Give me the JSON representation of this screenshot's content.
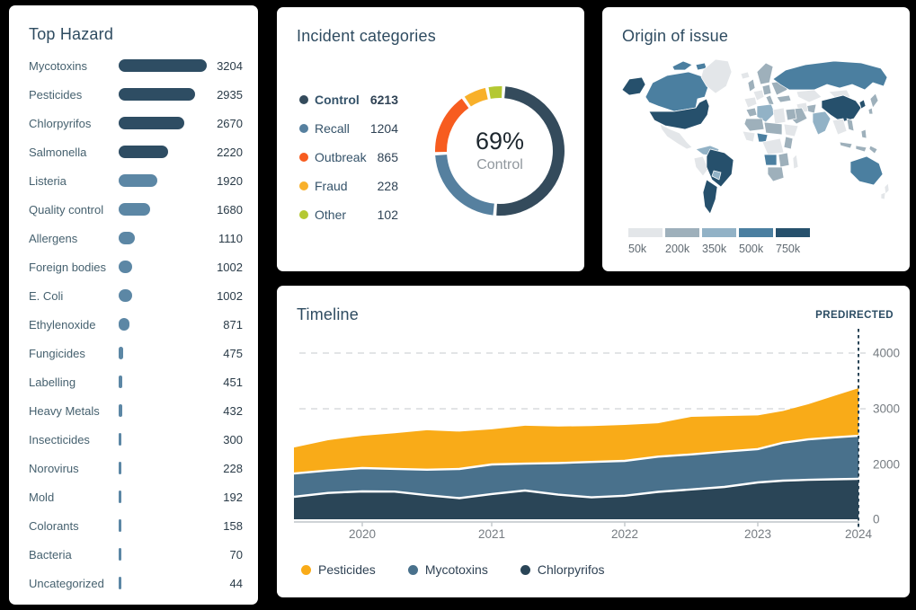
{
  "palette": {
    "page_bg": "#000000",
    "card_bg": "#FFFFFF",
    "title": "#2E4B60",
    "bar_dark": "#2E4D63",
    "bar_light": "#5C87A5",
    "axis_text": "#767C82",
    "grid": "#D8DBDD",
    "pred_line": "#2A4557"
  },
  "panels": {
    "top_hazard": {
      "title": "Top Hazard"
    },
    "incident_categories": {
      "title": "Incident categories",
      "center_value": "69%",
      "center_label": "Control"
    },
    "origin_of_issue": {
      "title": "Origin of issue"
    },
    "timeline": {
      "title": "Timeline",
      "annotation": "PREDIRECTED"
    }
  },
  "chart_data": [
    {
      "type": "bar",
      "title": "Top Hazard",
      "orientation": "horizontal",
      "categories": [
        "Mycotoxins",
        "Pesticides",
        "Chlorpyrifos",
        "Salmonella",
        "Listeria",
        "Quality control",
        "Allergens",
        "Foreign bodies",
        "E. Coli",
        "Ethylenoxide",
        "Fungicides",
        "Labelling",
        "Heavy Metals",
        "Insecticides",
        "Norovirus",
        "Mold",
        "Colorants",
        "Bacteria",
        "Uncategorized"
      ],
      "values": [
        3204,
        2935,
        2670,
        2220,
        1920,
        1680,
        1110,
        1002,
        1002,
        871,
        475,
        451,
        432,
        300,
        228,
        192,
        158,
        70,
        44
      ],
      "dark_count": 4
    },
    {
      "type": "pie",
      "subtype": "donut",
      "title": "Incident categories",
      "labels": [
        "Control",
        "Recall",
        "Outbreak",
        "Fraud",
        "Other"
      ],
      "values": [
        6213,
        1204,
        865,
        228,
        102
      ],
      "colors": [
        "#344B5C",
        "#56809F",
        "#F75C1F",
        "#F8B02A",
        "#B4C832"
      ],
      "center": {
        "value": "69%",
        "label": "Control"
      },
      "display_sweeps_deg": [
        178,
        80,
        55,
        20,
        12
      ],
      "start_angle_deg": 5,
      "gap_deg": 3,
      "legend_position": "left"
    },
    {
      "type": "heatmap",
      "subtype": "choropleth-world-map",
      "title": "Origin of issue",
      "scale_labels": [
        "50k",
        "200k",
        "350k",
        "500k",
        "750k"
      ],
      "scale_colors": [
        "#E3E6E9",
        "#9EB0BB",
        "#92B2C6",
        "#4B7FA0",
        "#26506C"
      ],
      "regions": [
        {
          "name": "alaska",
          "level": 5
        },
        {
          "name": "canada",
          "level": 4
        },
        {
          "name": "canada-islands",
          "level": 4
        },
        {
          "name": "greenland",
          "level": 1
        },
        {
          "name": "usa",
          "level": 5
        },
        {
          "name": "mexico",
          "level": 1
        },
        {
          "name": "colombia-venezuela",
          "level": 3
        },
        {
          "name": "peru",
          "level": 1
        },
        {
          "name": "brazil",
          "level": 5
        },
        {
          "name": "bolivia",
          "level": 3
        },
        {
          "name": "argentina-chile",
          "level": 5
        },
        {
          "name": "iceland",
          "level": 1
        },
        {
          "name": "scandinavia",
          "level": 2
        },
        {
          "name": "uk",
          "level": 2
        },
        {
          "name": "iberia",
          "level": 1
        },
        {
          "name": "france",
          "level": 1
        },
        {
          "name": "central-europe",
          "level": 2
        },
        {
          "name": "italy",
          "level": 2
        },
        {
          "name": "eastern-europe",
          "level": 2
        },
        {
          "name": "russia",
          "level": 4
        },
        {
          "name": "kazakhstan",
          "level": 1
        },
        {
          "name": "mongolia",
          "level": 1
        },
        {
          "name": "china",
          "level": 5
        },
        {
          "name": "korea",
          "level": 5
        },
        {
          "name": "japan",
          "level": 2
        },
        {
          "name": "india",
          "level": 3
        },
        {
          "name": "pakistan",
          "level": 2
        },
        {
          "name": "iran",
          "level": 1
        },
        {
          "name": "turkey",
          "level": 2
        },
        {
          "name": "saudi-arabia",
          "level": 2
        },
        {
          "name": "morocco",
          "level": 2
        },
        {
          "name": "algeria",
          "level": 3
        },
        {
          "name": "libya",
          "level": 1
        },
        {
          "name": "egypt",
          "level": 2
        },
        {
          "name": "mali-mauritania",
          "level": 2
        },
        {
          "name": "niger-chad",
          "level": 2
        },
        {
          "name": "west-africa",
          "level": 1
        },
        {
          "name": "nigeria",
          "level": 4
        },
        {
          "name": "sudan",
          "level": 1
        },
        {
          "name": "east-africa",
          "level": 2
        },
        {
          "name": "central-africa",
          "level": 1
        },
        {
          "name": "angola",
          "level": 4
        },
        {
          "name": "mozambique",
          "level": 2
        },
        {
          "name": "south-africa",
          "level": 2
        },
        {
          "name": "madagascar",
          "level": 1
        },
        {
          "name": "myanmar-thailand",
          "level": 1
        },
        {
          "name": "vietnam",
          "level": 2
        },
        {
          "name": "philippines",
          "level": 2
        },
        {
          "name": "indonesia",
          "level": 2
        },
        {
          "name": "australia",
          "level": 4
        },
        {
          "name": "new-zealand",
          "level": 1
        }
      ]
    },
    {
      "type": "area",
      "stacked": true,
      "title": "Timeline",
      "annotation": "PREDIRECTED",
      "annotation_x": 2024,
      "x": [
        2019.5,
        2019.75,
        2020,
        2020.25,
        2020.5,
        2020.75,
        2021,
        2021.25,
        2021.5,
        2021.75,
        2022,
        2022.25,
        2022.5,
        2022.75,
        2023,
        2023.25,
        2023.5,
        2023.75,
        2024
      ],
      "series": [
        {
          "name": "Chlorpyrifos",
          "color": "#2A4557",
          "values": [
            820,
            960,
            1015,
            1010,
            880,
            770,
            920,
            1050,
            900,
            800,
            860,
            1000,
            1090,
            1180,
            1345,
            1410,
            1440,
            1460,
            1475
          ]
        },
        {
          "name": "Mycotoxins",
          "color": "#49718C",
          "values": [
            850,
            820,
            855,
            830,
            930,
            1065,
            1080,
            965,
            1125,
            1245,
            1205,
            1140,
            1090,
            1050,
            930,
            980,
            1010,
            1025,
            1040
          ]
        },
        {
          "name": "Pesticides",
          "color": "#F9AB18",
          "values": [
            635,
            655,
            645,
            720,
            805,
            755,
            630,
            680,
            655,
            645,
            645,
            600,
            675,
            640,
            605,
            570,
            630,
            740,
            855
          ]
        }
      ],
      "legend_order": [
        "Pesticides",
        "Mycotoxins",
        "Chlorpyrifos"
      ],
      "x_ticks": [
        2020,
        2021,
        2022,
        2023,
        2024
      ],
      "y_ticks": [
        0,
        2000,
        3000,
        4000
      ],
      "grid": "dashed horizontal gridlines at 3000 and 4000 only",
      "y_axis_position": "right"
    }
  ]
}
